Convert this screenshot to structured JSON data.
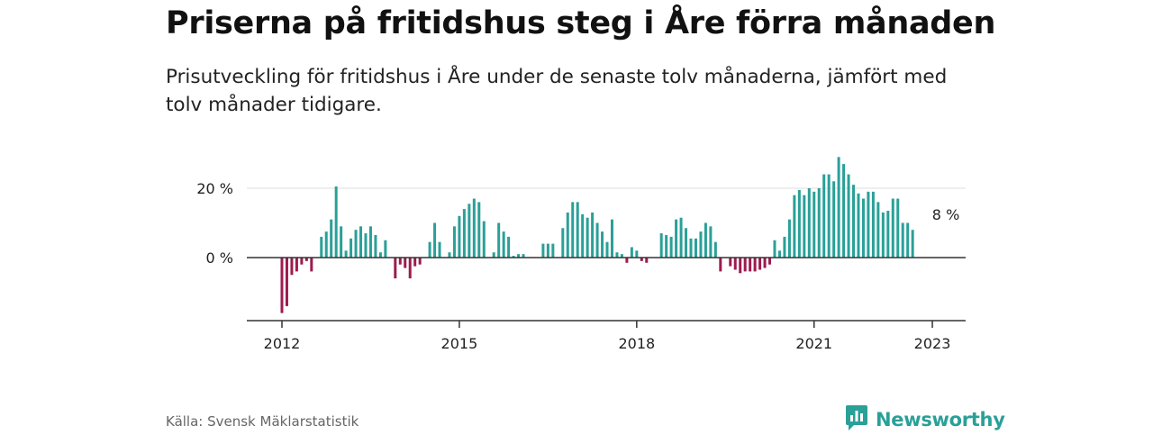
{
  "header": {
    "title": "Priserna på fritidshus steg i Åre förra månaden",
    "subtitle": "Prisutveckling för fritidshus i Åre under de senaste tolv månaderna, jämfört med tolv månader tidigare."
  },
  "footer": {
    "source": "Källa: Svensk Mäklarstatistik",
    "brand": "Newsworthy",
    "brand_icon": "newsworthy-logo-icon"
  },
  "colors": {
    "positive": "#2aa098",
    "negative": "#9c1c4f",
    "grid": "#dddddd",
    "axis": "#333333"
  },
  "chart_data": {
    "type": "bar",
    "start": "2012-01",
    "frequency": "monthly",
    "y_unit": "%",
    "ylim": [
      -18,
      30
    ],
    "y_ticks": [
      {
        "value": 0,
        "label": "0 %"
      },
      {
        "value": 20,
        "label": "20 %"
      }
    ],
    "x_ticks": [
      {
        "month": "2012-01",
        "label": "2012"
      },
      {
        "month": "2015-01",
        "label": "2015"
      },
      {
        "month": "2018-01",
        "label": "2018"
      },
      {
        "month": "2021-01",
        "label": "2021"
      },
      {
        "month": "2023-01",
        "label": "2023"
      }
    ],
    "grid": "horizontal",
    "annotation": {
      "text": "8 %",
      "month": "2023-01"
    },
    "values": [
      -16,
      -14,
      -5,
      -4,
      -2,
      -1,
      -4,
      0,
      6,
      7.5,
      11,
      20.5,
      9,
      2,
      5.5,
      8,
      9,
      7,
      9,
      6.5,
      1.5,
      5,
      0,
      -6,
      -2,
      -3,
      -6,
      -2.5,
      -2,
      0,
      4.5,
      10,
      4.5,
      0,
      1.5,
      9,
      12,
      14,
      15.5,
      17,
      16,
      10.5,
      0,
      1.5,
      10,
      7.5,
      6,
      0.5,
      1,
      1,
      0,
      0,
      0,
      4,
      4,
      4,
      0,
      8.5,
      13,
      16,
      16,
      12.5,
      11.5,
      13,
      10,
      7.5,
      4.5,
      11,
      1.5,
      1,
      -1.5,
      3,
      2,
      -1,
      -1.5,
      0,
      0,
      7,
      6.5,
      6,
      11,
      11.5,
      8.5,
      5.5,
      5.5,
      7.5,
      10,
      9,
      4.5,
      -4,
      0,
      -2.5,
      -3.5,
      -4.5,
      -4,
      -4,
      -4,
      -3.5,
      -3,
      -2,
      5,
      2,
      6,
      11,
      18,
      19.5,
      18,
      20,
      19,
      20,
      24,
      24,
      22,
      29,
      27,
      24,
      21,
      18.5,
      17,
      19,
      19,
      16,
      13,
      13.5,
      17,
      17,
      10,
      10,
      8
    ]
  }
}
